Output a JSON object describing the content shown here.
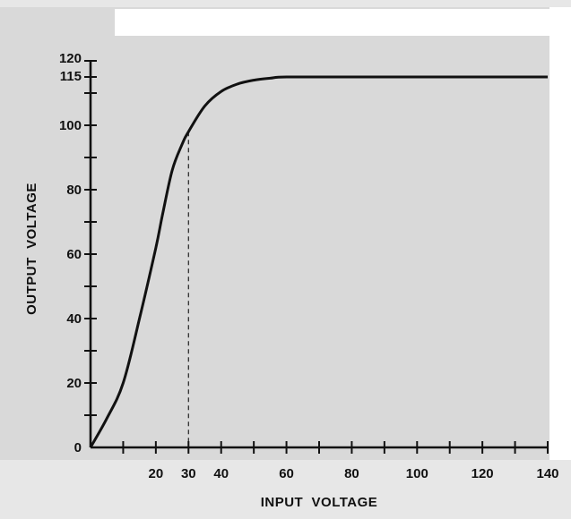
{
  "chart_data": {
    "type": "line",
    "title": "",
    "xlabel": "INPUT  VOLTAGE",
    "ylabel": "OUTPUT  VOLTAGE",
    "xlim": [
      0,
      140
    ],
    "ylim": [
      0,
      120
    ],
    "x_ticks": [
      20,
      30,
      40,
      60,
      80,
      100,
      120,
      140
    ],
    "y_ticks": [
      0,
      20,
      40,
      60,
      80,
      100,
      115,
      120
    ],
    "minor_x_step": 10,
    "minor_y_step": 10,
    "grid": false,
    "legend": "none",
    "series": [
      {
        "x": [
          0,
          5,
          10,
          15,
          20,
          22,
          25,
          28,
          30,
          35,
          40,
          45,
          50,
          55,
          60,
          80,
          100,
          120,
          140
        ],
        "y": [
          0,
          9,
          20,
          40,
          62,
          72,
          86,
          94,
          98,
          106,
          110.5,
          112.8,
          114,
          114.6,
          115,
          115,
          115,
          115,
          115
        ]
      }
    ],
    "reference_line": {
      "x": 30,
      "y": 98
    }
  },
  "colors": {
    "background": "#e7e7e7",
    "plot_area": "#d9d9d9",
    "ink": "#111111"
  }
}
